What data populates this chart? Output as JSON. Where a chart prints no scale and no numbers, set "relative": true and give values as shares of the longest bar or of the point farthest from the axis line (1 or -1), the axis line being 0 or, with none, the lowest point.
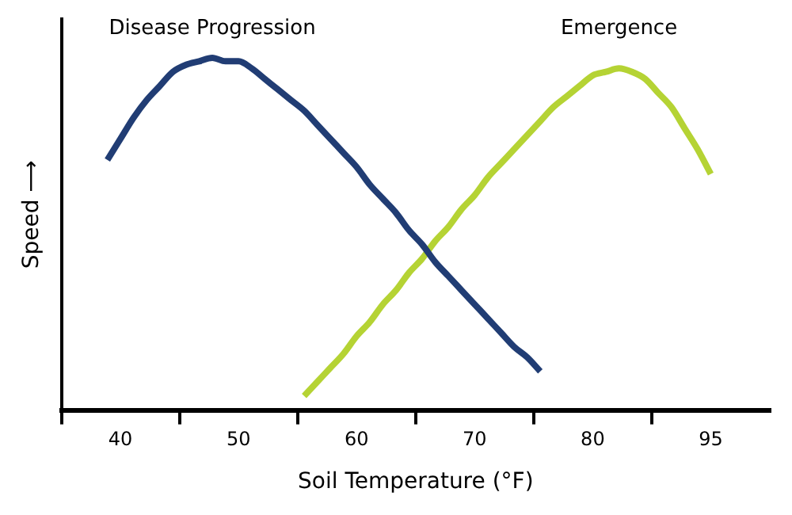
{
  "chart_data": {
    "type": "line",
    "xlabel": "Soil Temperature (°F)",
    "ylabel": "Speed ⟶",
    "relative": true,
    "legend": false,
    "grid": false,
    "marker": "none",
    "categories": [
      null,
      null,
      null,
      null,
      "40",
      null,
      null,
      null,
      null,
      null,
      null,
      null,
      null,
      "50",
      null,
      null,
      null,
      null,
      null,
      null,
      null,
      null,
      "60",
      null,
      null,
      null,
      null,
      null,
      null,
      null,
      null,
      "70",
      null,
      null,
      null,
      null,
      null,
      null,
      null,
      null,
      "80",
      null,
      null,
      null,
      null,
      null,
      null,
      null,
      null,
      "95",
      null,
      null,
      null,
      null
    ],
    "series": [
      {
        "name": "Disease Progression",
        "color": "#213d74",
        "values": [
          null,
          null,
          null,
          0.71,
          0.77,
          0.83,
          0.88,
          0.92,
          0.96,
          0.98,
          0.99,
          1,
          0.99,
          0.99,
          0.97,
          0.94,
          0.91,
          0.88,
          0.85,
          0.81,
          0.77,
          0.73,
          0.69,
          0.64,
          0.6,
          0.56,
          0.51,
          0.47,
          0.42,
          0.38,
          0.34,
          0.3,
          0.26,
          0.22,
          0.18,
          0.15,
          0.11,
          null,
          null,
          null,
          null,
          null,
          null,
          null,
          null,
          null,
          null,
          null,
          null,
          null,
          null,
          null,
          null,
          null
        ]
      },
      {
        "name": "Emergence",
        "color": "#b5d334",
        "values": [
          null,
          null,
          null,
          null,
          null,
          null,
          null,
          null,
          null,
          null,
          null,
          null,
          null,
          null,
          null,
          null,
          null,
          null,
          0.04,
          0.08,
          0.12,
          0.16,
          0.21,
          0.25,
          0.3,
          0.34,
          0.39,
          0.43,
          0.48,
          0.52,
          0.57,
          0.61,
          0.66,
          0.7,
          0.74,
          0.78,
          0.82,
          0.86,
          0.89,
          0.92,
          0.95,
          0.96,
          0.97,
          0.96,
          0.94,
          0.9,
          0.86,
          0.8,
          0.74,
          0.67,
          null,
          null,
          null,
          null
        ]
      }
    ]
  }
}
